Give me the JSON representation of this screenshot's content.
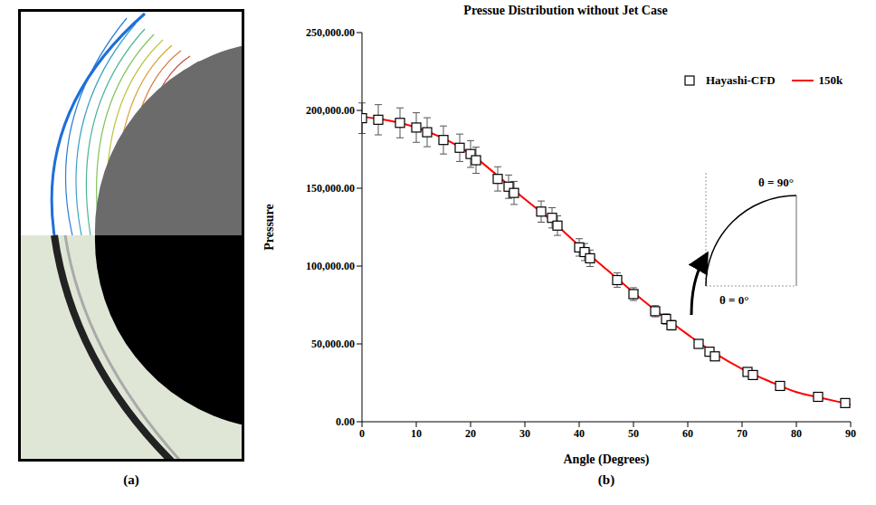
{
  "panel_labels": [
    "(a)",
    "(b)"
  ],
  "chart_data": {
    "type": "scatter",
    "title": "Pressue Distribution without Jet Case",
    "x_label": "Angle (Degrees)",
    "y_label": "Pressure",
    "xlim": [
      0,
      90
    ],
    "xticks": [
      0,
      10,
      20,
      30,
      40,
      50,
      60,
      70,
      80,
      90
    ],
    "ylim": [
      0,
      250000
    ],
    "yticks": [
      {
        "value": 0,
        "label": "0.00"
      },
      {
        "value": 50000,
        "label": "50,000.00"
      },
      {
        "value": 100000,
        "label": "100,000.00"
      },
      {
        "value": 150000,
        "label": "150,000.00"
      },
      {
        "value": 200000,
        "label": "200,000.00"
      },
      {
        "value": 250000,
        "label": "250,000.00"
      }
    ],
    "grid": false,
    "legend": "top-right",
    "annotations": [
      "θ = 90°",
      "θ = 0°"
    ],
    "series": [
      {
        "name": "Hayashi-CFD",
        "type": "scatter",
        "marker": "square",
        "color": "#000000",
        "x": [
          0,
          3,
          7,
          10,
          12,
          15,
          18,
          20,
          21,
          25,
          27,
          28,
          33,
          35,
          36,
          40,
          41,
          42,
          47,
          50,
          54,
          56,
          57,
          62,
          64,
          65,
          71,
          72,
          77,
          84,
          89
        ],
        "values": [
          195000,
          194000,
          192000,
          189000,
          186000,
          181000,
          176000,
          172000,
          168000,
          156000,
          151000,
          147000,
          135000,
          131000,
          126000,
          112000,
          109000,
          105000,
          91000,
          82000,
          71000,
          66000,
          62000,
          50000,
          45000,
          42000,
          32000,
          30000,
          23000,
          16000,
          12000
        ],
        "error": [
          9800,
          9700,
          9600,
          9500,
          9300,
          9000,
          8800,
          8600,
          8400,
          7800,
          7500,
          7400,
          6800,
          6500,
          6300,
          5600,
          5500,
          5300,
          4600,
          4100,
          3600,
          3300,
          3100,
          2500,
          2300,
          2100,
          1600,
          1500,
          1200,
          800,
          600
        ]
      },
      {
        "name": "150k",
        "type": "line",
        "color": "#ff0000",
        "line_style": "solid",
        "x": [
          0,
          5,
          10,
          15,
          20,
          25,
          30,
          35,
          40,
          45,
          50,
          55,
          60,
          65,
          70,
          75,
          80,
          85,
          90
        ],
        "values": [
          196000,
          193500,
          189000,
          182000,
          172000,
          158000,
          143000,
          129000,
          113000,
          98000,
          83000,
          69000,
          56000,
          44000,
          34000,
          26000,
          19000,
          15000,
          11000
        ]
      }
    ]
  }
}
